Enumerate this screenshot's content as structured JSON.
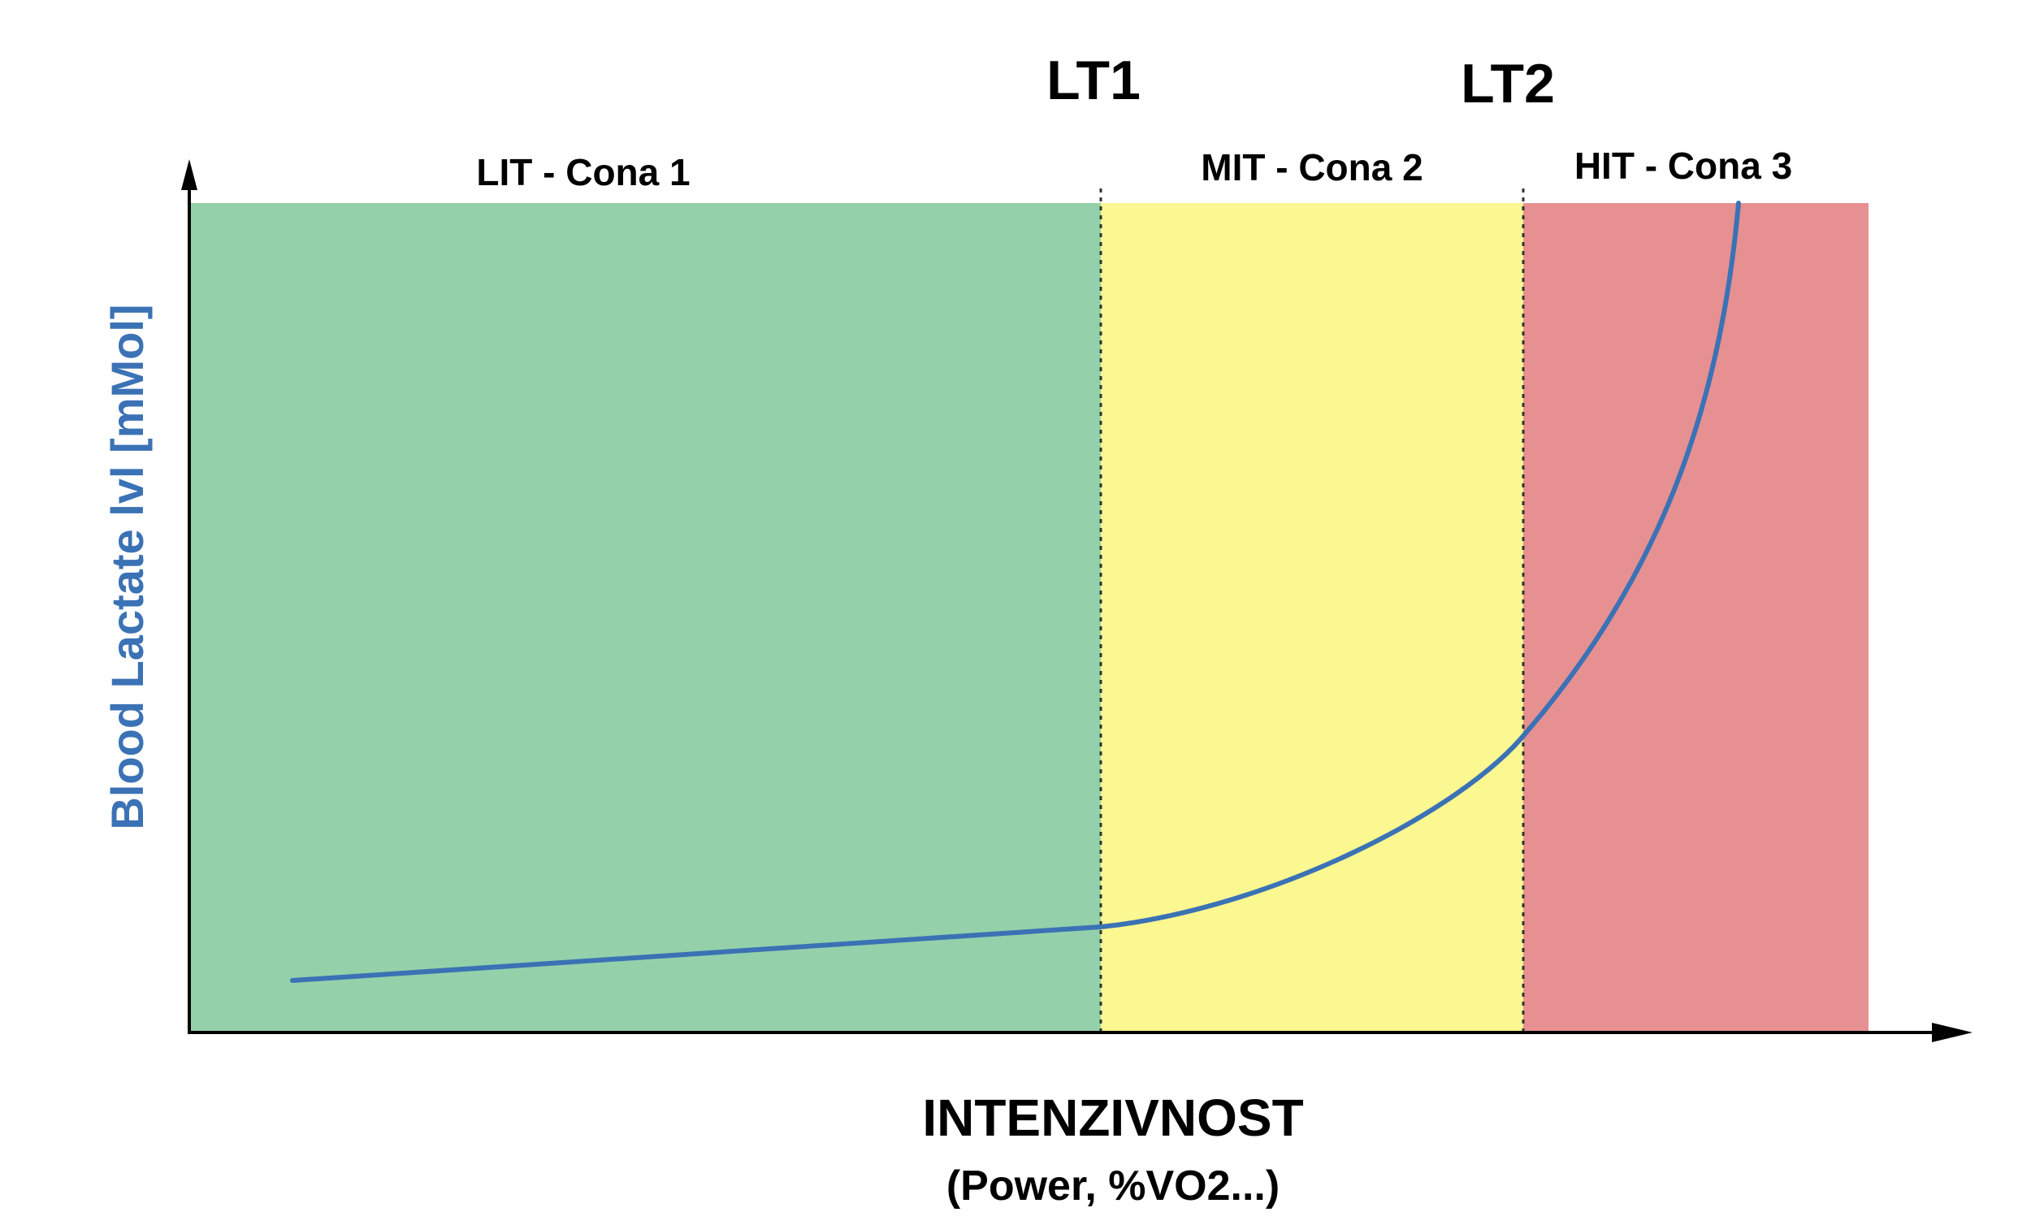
{
  "thresholds": {
    "lt1": "LT1",
    "lt2": "LT2"
  },
  "zones": [
    {
      "label": "LIT - Cona 1",
      "color": "#94d1aa"
    },
    {
      "label": "MIT - Cona 2",
      "color": "#fbf791"
    },
    {
      "label": "HIT - Cona 3",
      "color": "#e79092"
    }
  ],
  "axes": {
    "y_label": "Blood Lactate lvl [mMol]",
    "x_label": "INTENZIVNOST",
    "x_sublabel": "(Power, %VO2...)"
  },
  "colors": {
    "curve": "#3b72b5",
    "axis": "#000000",
    "y_label": "#3b72b5"
  }
}
